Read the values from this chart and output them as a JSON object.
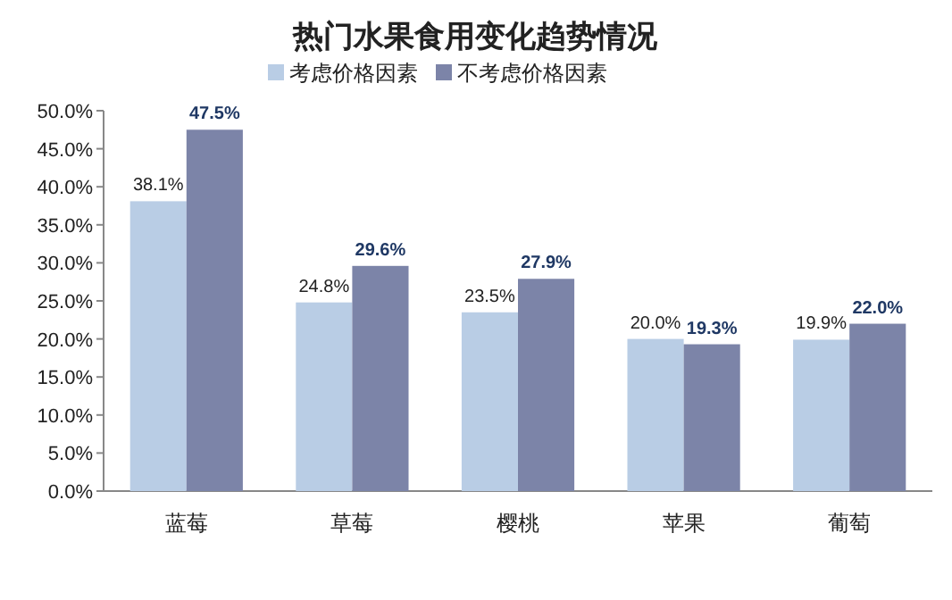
{
  "chart_data": {
    "type": "bar",
    "title": "热门水果食用变化趋势情况",
    "categories": [
      "蓝莓",
      "草莓",
      "樱桃",
      "苹果",
      "葡萄"
    ],
    "series": [
      {
        "name": "考虑价格因素",
        "color": "#b9cde5",
        "values": [
          38.1,
          24.8,
          23.5,
          20.0,
          19.9
        ],
        "value_labels": [
          "38.1%",
          "24.8%",
          "23.5%",
          "20.0%",
          "19.9%"
        ]
      },
      {
        "name": "不考虑价格因素",
        "color": "#7c84a8",
        "values": [
          47.5,
          29.6,
          27.9,
          19.3,
          22.0
        ],
        "value_labels": [
          "47.5%",
          "29.6%",
          "27.9%",
          "19.3%",
          "22.0%"
        ]
      }
    ],
    "ylim": [
      0,
      50
    ],
    "yticks": [
      {
        "value": 0,
        "label": "0.0%"
      },
      {
        "value": 5,
        "label": "5.0%"
      },
      {
        "value": 10,
        "label": "10.0%"
      },
      {
        "value": 15,
        "label": "15.0%"
      },
      {
        "value": 20,
        "label": "20.0%"
      },
      {
        "value": 25,
        "label": "25.0%"
      },
      {
        "value": 30,
        "label": "30.0%"
      },
      {
        "value": 35,
        "label": "35.0%"
      },
      {
        "value": 40,
        "label": "40.0%"
      },
      {
        "value": 45,
        "label": "45.0%"
      },
      {
        "value": 50,
        "label": "50.0%"
      }
    ],
    "legend": "top",
    "grid": false
  }
}
